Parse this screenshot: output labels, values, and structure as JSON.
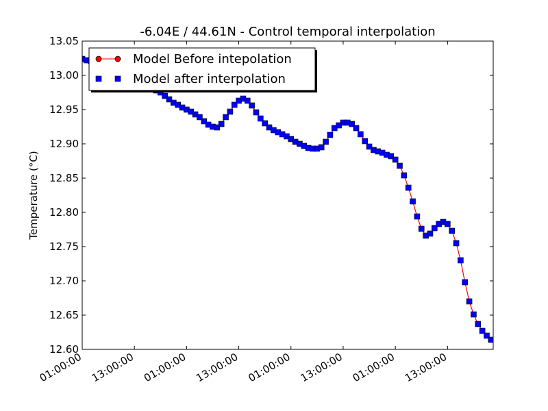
{
  "chart_data": {
    "type": "line",
    "title": "-6.04E / 44.61N - Control temporal interpolation",
    "xlabel": "",
    "ylabel": "Temperature (°C)",
    "ylim": [
      12.6,
      13.05
    ],
    "xlim": [
      0,
      94.5
    ],
    "yticks": [
      "12.60",
      "12.65",
      "12.70",
      "12.75",
      "12.80",
      "12.85",
      "12.90",
      "12.95",
      "13.00",
      "13.05"
    ],
    "xticks": [
      {
        "x": 0,
        "label": "01:00:00"
      },
      {
        "x": 12,
        "label": "13:00:00"
      },
      {
        "x": 24,
        "label": "01:00:00"
      },
      {
        "x": 36,
        "label": "13:00:00"
      },
      {
        "x": 48,
        "label": "01:00:00"
      },
      {
        "x": 60,
        "label": "13:00:00"
      },
      {
        "x": 72,
        "label": "01:00:00"
      },
      {
        "x": 84,
        "label": "13:00:00"
      }
    ],
    "legend_position": "top-left",
    "series": [
      {
        "name": "Model Before intepolation",
        "style": "line-with-circle-markers",
        "color": "#ff0000",
        "x": [
          0,
          1,
          2,
          3,
          4,
          5,
          6,
          7,
          8,
          9,
          10,
          11,
          12,
          13,
          14,
          15,
          16,
          17,
          18,
          19,
          20,
          21,
          22,
          23,
          24,
          25,
          26,
          27,
          28,
          29,
          30,
          31,
          32,
          33,
          34,
          35,
          36,
          37,
          38,
          39,
          40,
          41,
          42,
          43,
          44,
          45,
          46,
          47,
          48,
          49,
          50,
          51,
          52,
          53,
          54,
          55,
          56,
          57,
          58,
          59,
          60,
          61,
          62,
          63,
          64,
          65,
          66,
          67,
          68,
          69,
          70,
          71,
          72,
          73,
          74,
          75,
          76,
          77,
          78,
          79,
          80,
          81,
          82,
          83,
          84,
          85,
          86,
          87,
          88,
          89,
          90,
          91,
          92,
          93,
          94
        ],
        "values": [
          13.024,
          13.022,
          13.021,
          13.019,
          13.017,
          13.014,
          13.011,
          13.008,
          13.005,
          13.002,
          12.999,
          12.996,
          12.993,
          12.99,
          12.987,
          12.984,
          12.981,
          12.978,
          12.975,
          12.97,
          12.965,
          12.96,
          12.957,
          12.953,
          12.95,
          12.947,
          12.943,
          12.939,
          12.933,
          12.928,
          12.925,
          12.924,
          12.929,
          12.939,
          12.947,
          12.957,
          12.963,
          12.966,
          12.963,
          12.956,
          12.946,
          12.937,
          12.93,
          12.924,
          12.92,
          12.917,
          12.914,
          12.911,
          12.907,
          12.903,
          12.9,
          12.897,
          12.894,
          12.893,
          12.893,
          12.895,
          12.903,
          12.913,
          12.923,
          12.927,
          12.931,
          12.931,
          12.929,
          12.923,
          12.914,
          12.904,
          12.896,
          12.891,
          12.889,
          12.887,
          12.884,
          12.882,
          12.877,
          12.868,
          12.854,
          12.836,
          12.816,
          12.794,
          12.776,
          12.766,
          12.769,
          12.777,
          12.783,
          12.786,
          12.783,
          12.773,
          12.755,
          12.73,
          12.698,
          12.67,
          12.651,
          12.637,
          12.627,
          12.62,
          12.614
        ]
      },
      {
        "name": "Model after interpolation",
        "style": "square-markers",
        "color": "#0000ff",
        "x": [
          0,
          1,
          2,
          3,
          4,
          5,
          6,
          7,
          8,
          9,
          10,
          11,
          12,
          13,
          14,
          15,
          16,
          17,
          18,
          19,
          20,
          21,
          22,
          23,
          24,
          25,
          26,
          27,
          28,
          29,
          30,
          31,
          32,
          33,
          34,
          35,
          36,
          37,
          38,
          39,
          40,
          41,
          42,
          43,
          44,
          45,
          46,
          47,
          48,
          49,
          50,
          51,
          52,
          53,
          54,
          55,
          56,
          57,
          58,
          59,
          60,
          61,
          62,
          63,
          64,
          65,
          66,
          67,
          68,
          69,
          70,
          71,
          72,
          73,
          74,
          75,
          76,
          77,
          78,
          79,
          80,
          81,
          82,
          83,
          84,
          85,
          86,
          87,
          88,
          89,
          90,
          91,
          92,
          93,
          94
        ],
        "values": [
          13.024,
          13.022,
          13.021,
          13.019,
          13.017,
          13.014,
          13.011,
          13.008,
          13.005,
          13.002,
          12.999,
          12.996,
          12.993,
          12.99,
          12.987,
          12.984,
          12.981,
          12.978,
          12.975,
          12.97,
          12.965,
          12.96,
          12.957,
          12.953,
          12.95,
          12.947,
          12.943,
          12.939,
          12.933,
          12.928,
          12.925,
          12.924,
          12.929,
          12.939,
          12.947,
          12.957,
          12.963,
          12.966,
          12.963,
          12.956,
          12.946,
          12.937,
          12.93,
          12.924,
          12.92,
          12.917,
          12.914,
          12.911,
          12.907,
          12.903,
          12.9,
          12.897,
          12.894,
          12.893,
          12.893,
          12.895,
          12.903,
          12.913,
          12.923,
          12.927,
          12.931,
          12.931,
          12.929,
          12.923,
          12.914,
          12.904,
          12.896,
          12.891,
          12.889,
          12.887,
          12.884,
          12.882,
          12.877,
          12.868,
          12.854,
          12.836,
          12.816,
          12.794,
          12.776,
          12.766,
          12.769,
          12.777,
          12.783,
          12.786,
          12.783,
          12.773,
          12.755,
          12.73,
          12.698,
          12.67,
          12.651,
          12.637,
          12.627,
          12.62,
          12.614
        ]
      }
    ]
  }
}
